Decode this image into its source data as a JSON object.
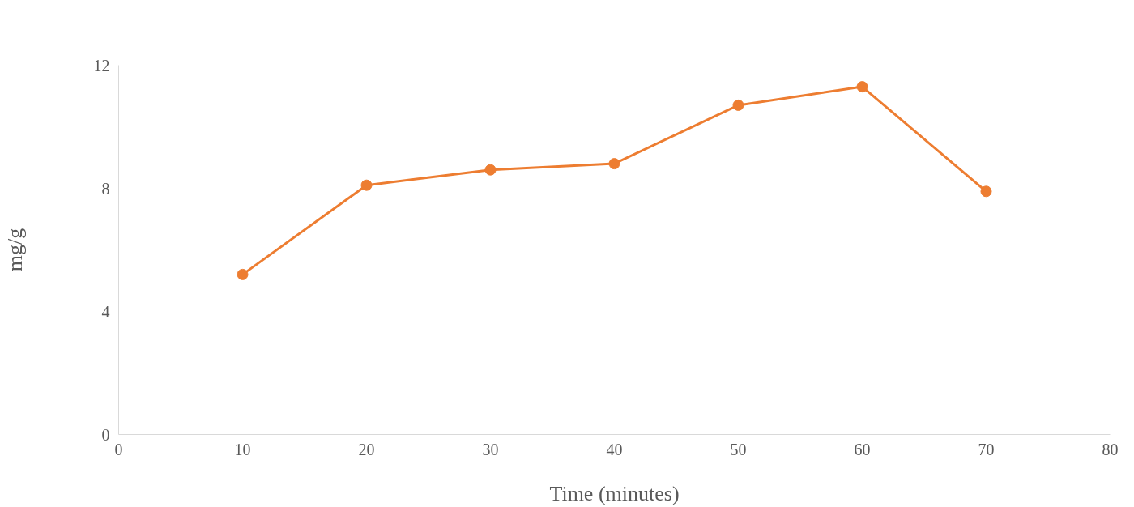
{
  "chart_data": {
    "type": "line",
    "xlabel": "Time (minutes)",
    "ylabel": "mg/g",
    "x": [
      10,
      20,
      30,
      40,
      50,
      60,
      70
    ],
    "series": [
      {
        "color": "#ed7d31",
        "values": [
          5.2,
          8.1,
          8.6,
          8.8,
          10.7,
          11.3,
          7.9
        ]
      }
    ],
    "xlim": [
      0,
      80
    ],
    "xticks": [
      0,
      10,
      20,
      30,
      40,
      50,
      60,
      70,
      80
    ],
    "ylim": [
      0,
      12
    ],
    "yticks": [
      0,
      4,
      8,
      12
    ],
    "grid": false,
    "marker": "circle",
    "line_style": "solid"
  }
}
